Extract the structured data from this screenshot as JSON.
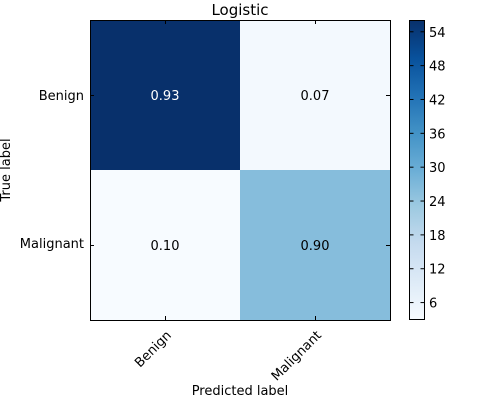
{
  "chart_data": {
    "type": "heatmap",
    "title": "Logistic",
    "xlabel": "Predicted label",
    "ylabel": "True label",
    "row_labels": [
      "Benign",
      "Malignant"
    ],
    "col_labels": [
      "Benign",
      "Malignant"
    ],
    "cells": [
      [
        {
          "label": "0.93",
          "count": 56
        },
        {
          "label": "0.07",
          "count": 4
        }
      ],
      [
        {
          "label": "0.10",
          "count": 3
        },
        {
          "label": "0.90",
          "count": 26
        }
      ]
    ],
    "colorbar": {
      "ticks": [
        "6",
        "12",
        "18",
        "24",
        "30",
        "36",
        "42",
        "48",
        "54"
      ],
      "range": [
        3,
        56
      ],
      "colormap": "Blues",
      "low_color": "#f7fbff",
      "high_color": "#08306b"
    },
    "grid": false
  }
}
